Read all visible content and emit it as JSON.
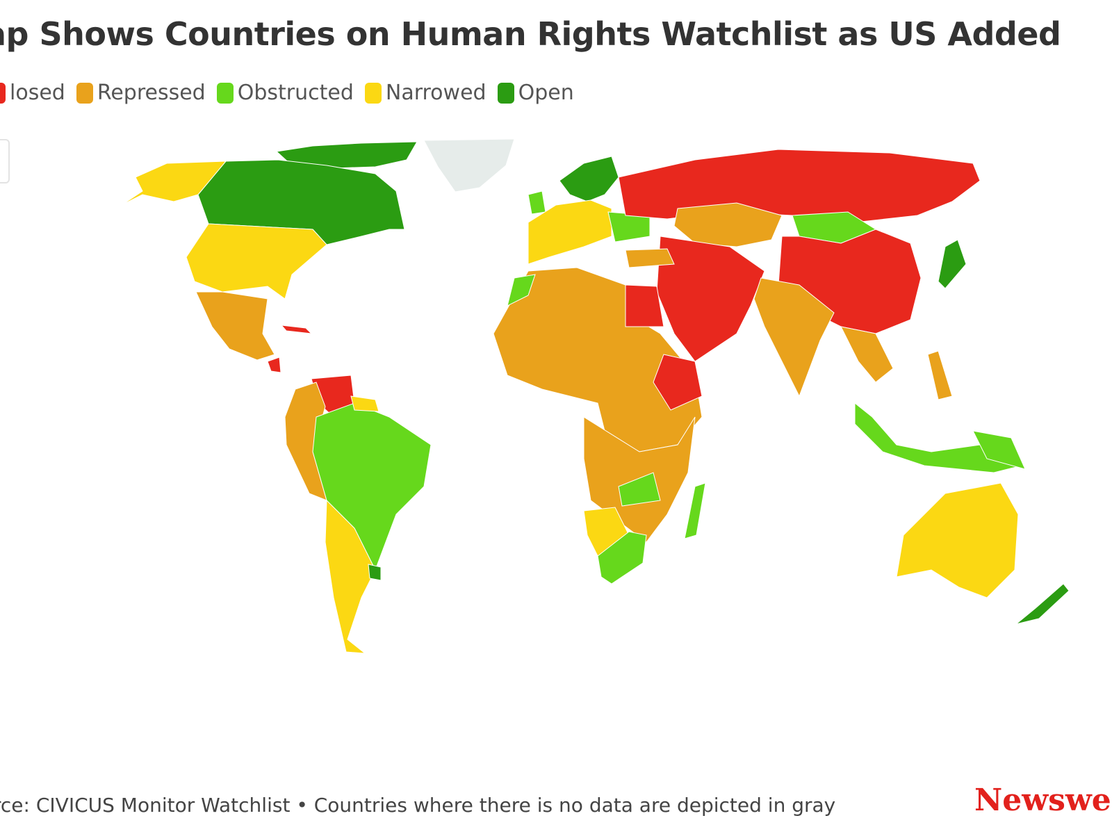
{
  "title": "ap Shows Countries on Human Rights Watchlist as US Added",
  "legend": [
    {
      "label": "losed",
      "color": "#e8281e"
    },
    {
      "label": "Repressed",
      "color": "#e9a21c"
    },
    {
      "label": "Obstructed",
      "color": "#66d81c"
    },
    {
      "label": "Narrowed",
      "color": "#fbd813"
    },
    {
      "label": "Open",
      "color": "#2b9c12"
    }
  ],
  "no_data_color": "#e6ecea",
  "source": "rce: CIVICUS Monitor Watchlist • Countries where there is no data are depicted in gray",
  "brand": "Newswee"
}
